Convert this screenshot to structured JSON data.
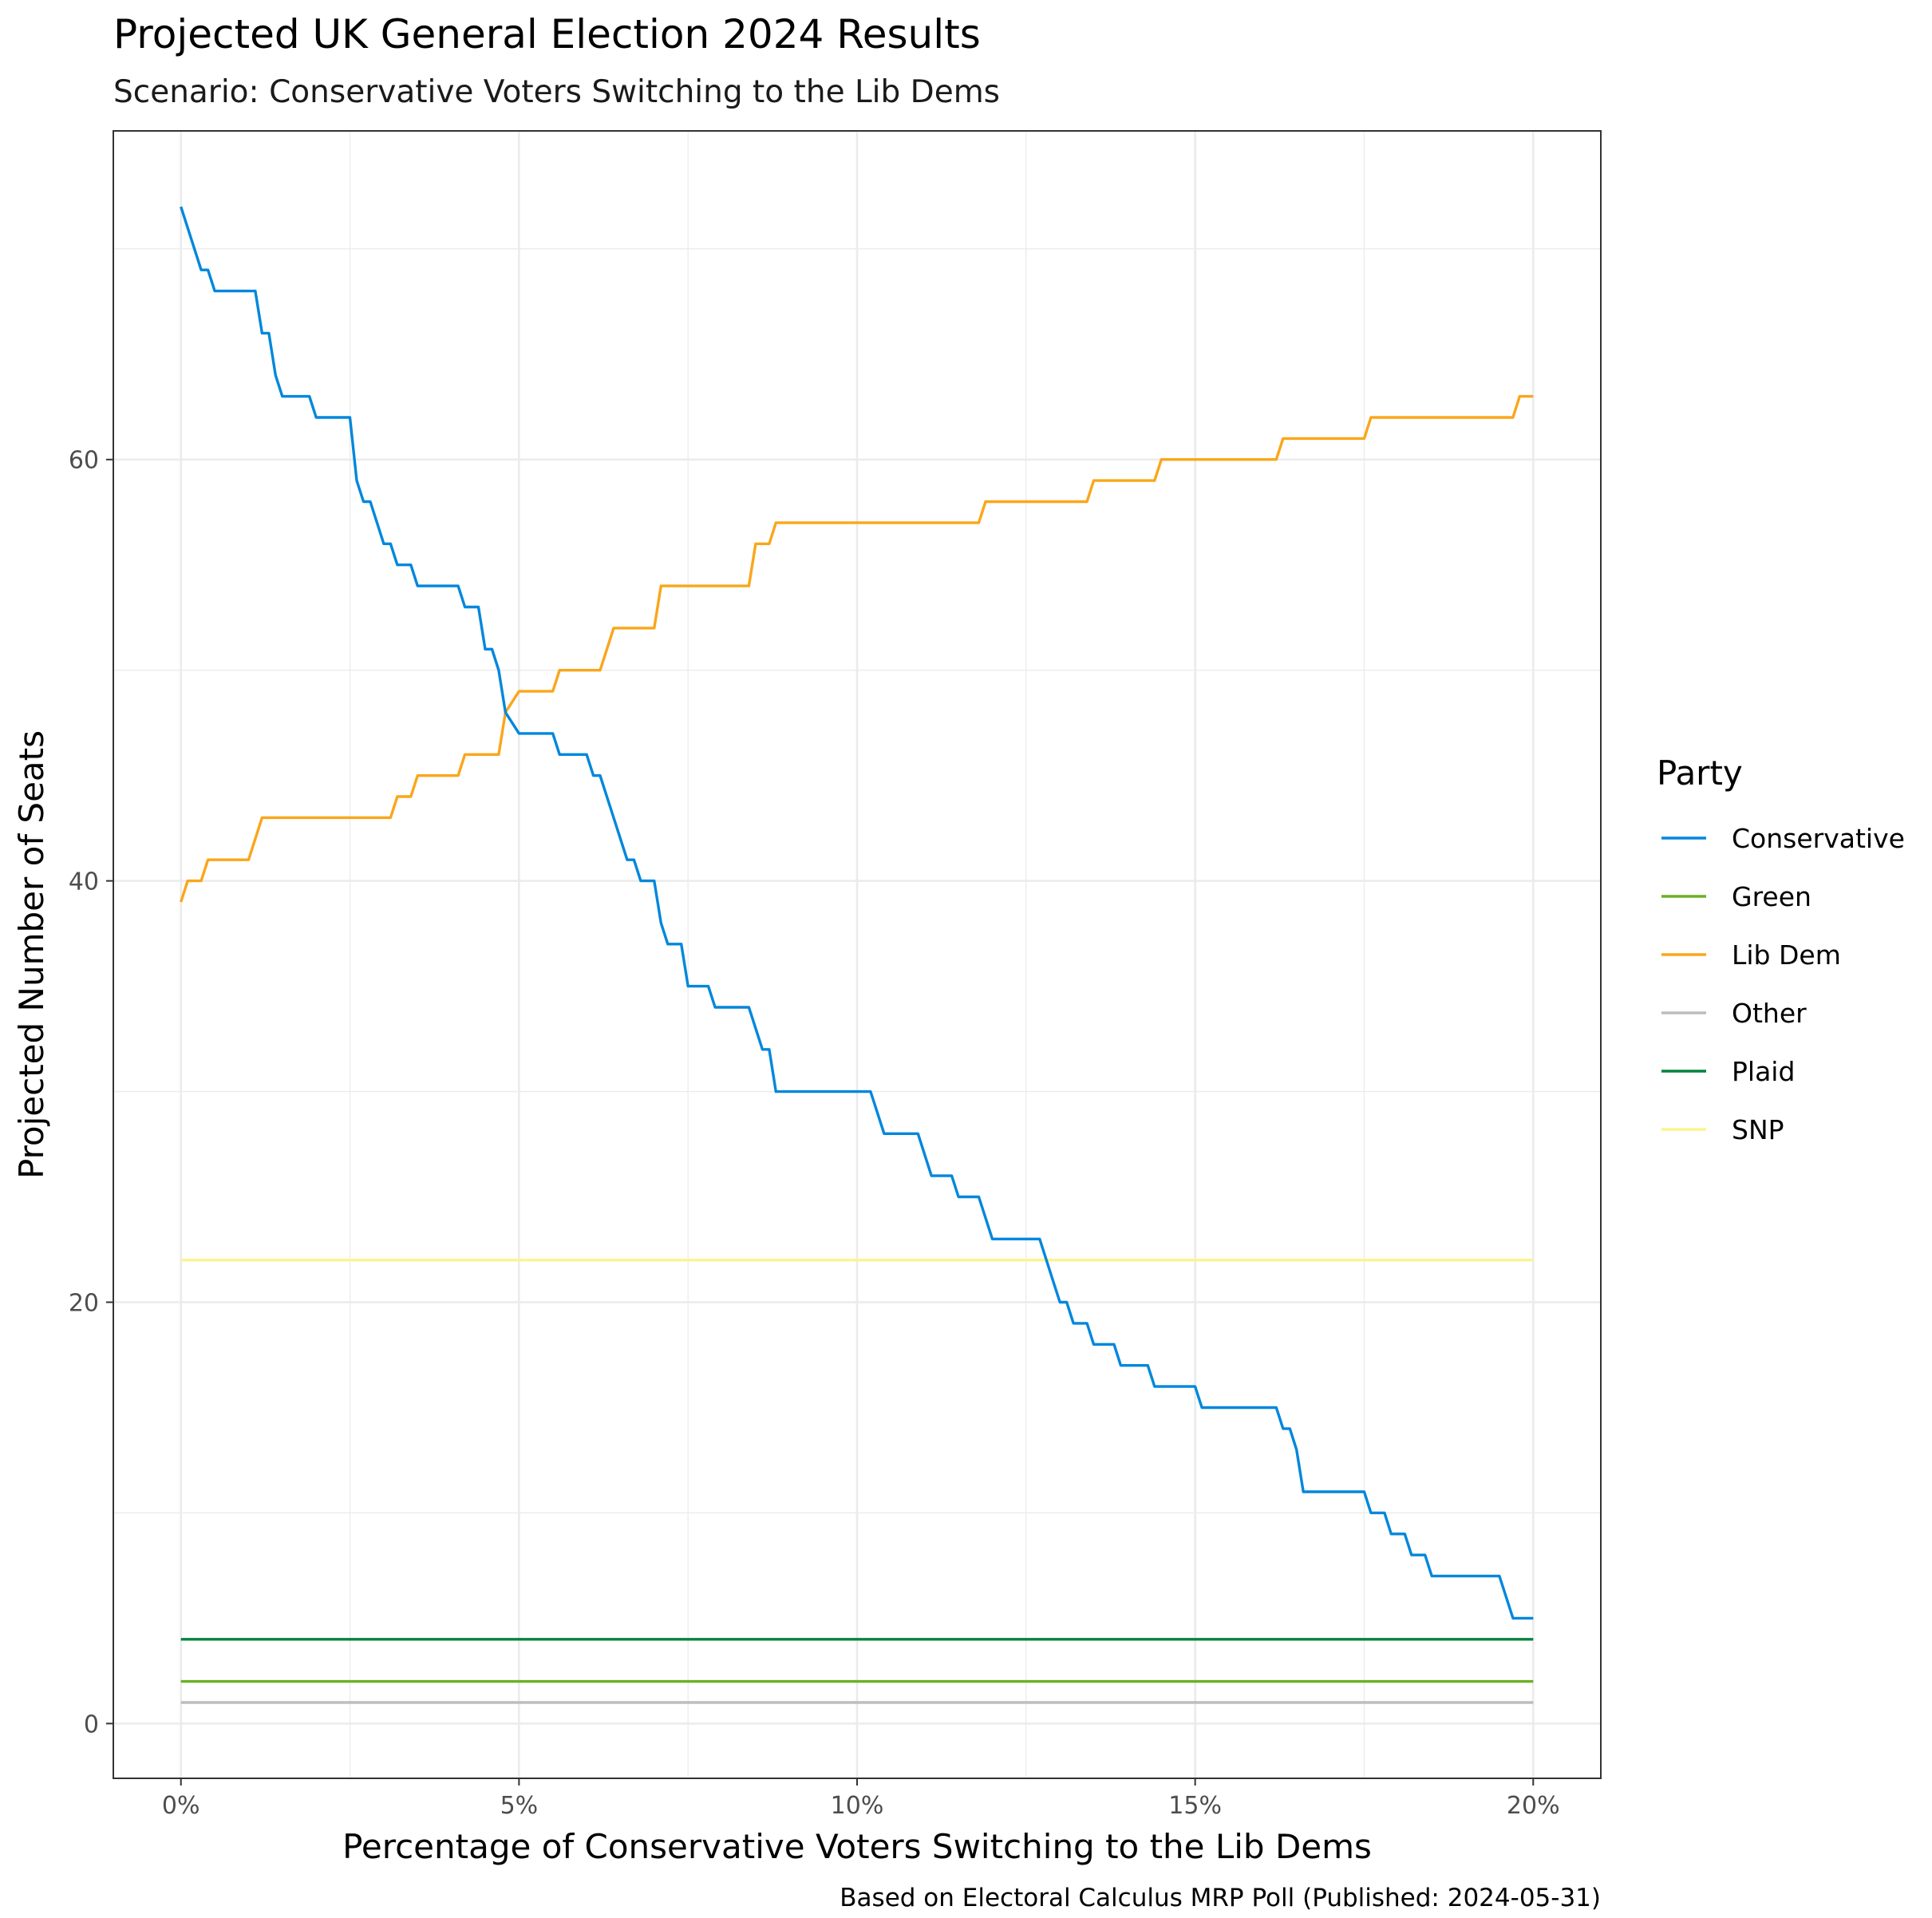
{
  "chart_data": {
    "type": "line",
    "title": "Projected UK General Election 2024 Results",
    "subtitle": "Scenario: Conservative Voters Switching to the Lib Dems",
    "xlabel": "Percentage of Conservative Voters Switching to the Lib Dems",
    "ylabel": "Projected Number of Seats",
    "caption": "Based on Electoral Calculus MRP Poll (Published: 2024-05-31)",
    "xlim": [
      -1,
      21
    ],
    "ylim": [
      -2.6,
      75.6
    ],
    "x_ticks": [
      0,
      5,
      10,
      15,
      20
    ],
    "x_tick_labels": [
      "0%",
      "5%",
      "10%",
      "15%",
      "20%"
    ],
    "y_ticks": [
      0,
      20,
      40,
      60
    ],
    "y_tick_labels": [
      "0",
      "20",
      "40",
      "60"
    ],
    "grid": true,
    "legend": {
      "title": "Party",
      "position": "right",
      "entries": [
        "Conservative",
        "Green",
        "Lib Dem",
        "Other",
        "Plaid",
        "SNP"
      ]
    },
    "series": [
      {
        "name": "Conservative",
        "color": "#0087DC",
        "points": [
          [
            0,
            72
          ],
          [
            0.3,
            69
          ],
          [
            0.4,
            69
          ],
          [
            0.5,
            68
          ],
          [
            1.1,
            68
          ],
          [
            1.2,
            66
          ],
          [
            1.3,
            66
          ],
          [
            1.4,
            64
          ],
          [
            1.5,
            63
          ],
          [
            1.9,
            63
          ],
          [
            2.0,
            62
          ],
          [
            2.5,
            62
          ],
          [
            2.6,
            59
          ],
          [
            2.7,
            58
          ],
          [
            2.8,
            58
          ],
          [
            3.0,
            56
          ],
          [
            3.1,
            56
          ],
          [
            3.2,
            55
          ],
          [
            3.4,
            55
          ],
          [
            3.5,
            54
          ],
          [
            4.1,
            54
          ],
          [
            4.2,
            53
          ],
          [
            4.4,
            53
          ],
          [
            4.5,
            51
          ],
          [
            4.6,
            51
          ],
          [
            4.7,
            50
          ],
          [
            4.8,
            48
          ],
          [
            5.0,
            47
          ],
          [
            5.5,
            47
          ],
          [
            5.6,
            46
          ],
          [
            6.0,
            46
          ],
          [
            6.1,
            45
          ],
          [
            6.2,
            45
          ],
          [
            6.6,
            41
          ],
          [
            6.7,
            41
          ],
          [
            6.8,
            40
          ],
          [
            7.0,
            40
          ],
          [
            7.1,
            38
          ],
          [
            7.2,
            37
          ],
          [
            7.4,
            37
          ],
          [
            7.5,
            35
          ],
          [
            7.8,
            35
          ],
          [
            7.9,
            34
          ],
          [
            8.4,
            34
          ],
          [
            8.6,
            32
          ],
          [
            8.7,
            32
          ],
          [
            8.8,
            30
          ],
          [
            10.2,
            30
          ],
          [
            10.4,
            28
          ],
          [
            10.9,
            28
          ],
          [
            11.1,
            26
          ],
          [
            11.4,
            26
          ],
          [
            11.5,
            25
          ],
          [
            11.8,
            25
          ],
          [
            12.0,
            23
          ],
          [
            12.7,
            23
          ],
          [
            12.9,
            21
          ],
          [
            13.0,
            20
          ],
          [
            13.1,
            20
          ],
          [
            13.2,
            19
          ],
          [
            13.4,
            19
          ],
          [
            13.5,
            18
          ],
          [
            13.8,
            18
          ],
          [
            13.9,
            17
          ],
          [
            14.3,
            17
          ],
          [
            14.4,
            16
          ],
          [
            15.0,
            16
          ],
          [
            15.1,
            15
          ],
          [
            16.2,
            15
          ],
          [
            16.3,
            14
          ],
          [
            16.4,
            14
          ],
          [
            16.5,
            13
          ],
          [
            16.6,
            11
          ],
          [
            17.5,
            11
          ],
          [
            17.6,
            10
          ],
          [
            17.8,
            10
          ],
          [
            17.9,
            9
          ],
          [
            18.1,
            9
          ],
          [
            18.2,
            8
          ],
          [
            18.4,
            8
          ],
          [
            18.5,
            7
          ],
          [
            19.5,
            7
          ],
          [
            19.7,
            5
          ],
          [
            20.0,
            5
          ]
        ]
      },
      {
        "name": "Green",
        "color": "#6AB023",
        "points": [
          [
            0,
            2
          ],
          [
            20,
            2
          ]
        ]
      },
      {
        "name": "Lib Dem",
        "color": "#FAA61A",
        "points": [
          [
            0,
            39
          ],
          [
            0.1,
            40
          ],
          [
            0.3,
            40
          ],
          [
            0.4,
            41
          ],
          [
            1.0,
            41
          ],
          [
            1.2,
            43
          ],
          [
            3.1,
            43
          ],
          [
            3.2,
            44
          ],
          [
            3.4,
            44
          ],
          [
            3.5,
            45
          ],
          [
            4.1,
            45
          ],
          [
            4.2,
            46
          ],
          [
            4.7,
            46
          ],
          [
            4.8,
            48
          ],
          [
            5.0,
            49
          ],
          [
            5.5,
            49
          ],
          [
            5.6,
            50
          ],
          [
            6.2,
            50
          ],
          [
            6.4,
            52
          ],
          [
            7.0,
            52
          ],
          [
            7.1,
            54
          ],
          [
            8.4,
            54
          ],
          [
            8.5,
            56
          ],
          [
            8.7,
            56
          ],
          [
            8.8,
            57
          ],
          [
            11.8,
            57
          ],
          [
            11.9,
            58
          ],
          [
            13.4,
            58
          ],
          [
            13.5,
            59
          ],
          [
            14.4,
            59
          ],
          [
            14.5,
            60
          ],
          [
            16.2,
            60
          ],
          [
            16.3,
            61
          ],
          [
            17.5,
            61
          ],
          [
            17.6,
            62
          ],
          [
            19.7,
            62
          ],
          [
            19.8,
            63
          ],
          [
            20.0,
            63
          ]
        ]
      },
      {
        "name": "Other",
        "color": "#BDBDBD",
        "points": [
          [
            0,
            1
          ],
          [
            20,
            1
          ]
        ]
      },
      {
        "name": "Plaid",
        "color": "#00843D",
        "points": [
          [
            0,
            4
          ],
          [
            20,
            4
          ]
        ]
      },
      {
        "name": "SNP",
        "color": "#FDF38E",
        "points": [
          [
            0,
            22
          ],
          [
            20,
            22
          ]
        ]
      }
    ]
  }
}
